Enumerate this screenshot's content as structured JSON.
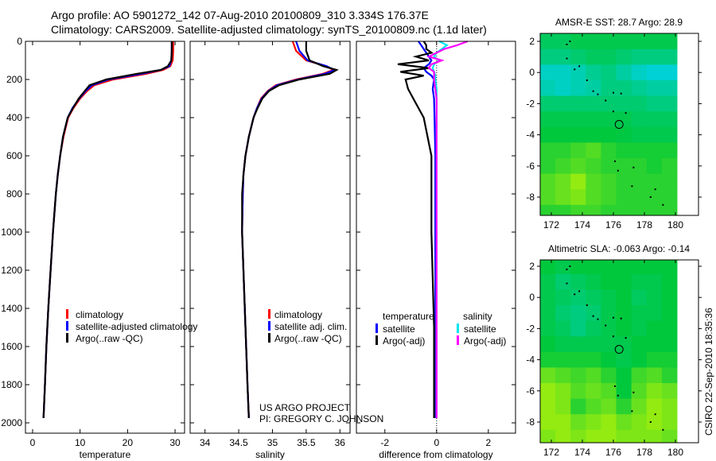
{
  "header": {
    "title_line1": "Argo profile: AO 5901272_142 07-Aug-2010 20100809_310 3.334S 176.37E",
    "title_line2": "Climatology: CARS2009. Satellite-adjusted climatology: synTS_20100809.nc (1.1d later)"
  },
  "credits": {
    "line1": "US ARGO PROJECT",
    "line2": "PI: GREGORY C. JOHNSON",
    "stamp": "CSIRO 22-Sep-2010 18:35:36"
  },
  "colors": {
    "clim": "#ff0000",
    "sat": "#0000ff",
    "argo": "#000000",
    "sal_sat": "#00e5ee",
    "sal_argo": "#ff00ff"
  },
  "chart_data": [
    {
      "type": "line",
      "name": "temperature",
      "xlabel": "temperature",
      "xlim": [
        -1.5,
        32
      ],
      "ylim": [
        2050,
        0
      ],
      "xticks": [
        0,
        10,
        20,
        30
      ],
      "yticks": [
        0,
        200,
        400,
        600,
        800,
        1000,
        1200,
        1400,
        1600,
        1800,
        2000
      ],
      "depth": [
        0,
        50,
        100,
        130,
        150,
        170,
        200,
        230,
        260,
        300,
        350,
        400,
        500,
        600,
        700,
        800,
        1000,
        1200,
        1400,
        1600,
        1800,
        1975
      ],
      "series": [
        {
          "name": "climatology",
          "color": "#ff0000",
          "values": [
            29.6,
            29.6,
            29.5,
            29,
            27.5,
            24,
            17,
            13,
            11.5,
            10,
            8.6,
            7.5,
            6.5,
            5.8,
            5.3,
            4.9,
            4.3,
            3.8,
            3.3,
            2.9,
            2.6,
            2.3
          ]
        },
        {
          "name": "satellite-adjusted climatology",
          "color": "#0000ff",
          "values": [
            29.3,
            29.3,
            29.2,
            28.8,
            27,
            23,
            16,
            12.5,
            11.2,
            9.8,
            8.4,
            7.4,
            6.4,
            5.8,
            5.3,
            4.9,
            4.3,
            3.8,
            3.3,
            2.9,
            2.6,
            2.3
          ]
        },
        {
          "name": "Argo(..raw -QC)",
          "color": "#000000",
          "values": [
            29.3,
            29.3,
            29.2,
            28.5,
            27,
            22,
            15.5,
            12,
            11,
            9.7,
            8.5,
            7.4,
            6.4,
            5.8,
            5.3,
            4.9,
            4.3,
            3.8,
            3.3,
            2.9,
            2.6,
            2.3
          ]
        }
      ]
    },
    {
      "type": "line",
      "name": "salinity",
      "xlabel": "salinity",
      "xlim": [
        33.78,
        36.15
      ],
      "ylim": [
        2050,
        0
      ],
      "xticks": [
        34,
        34.5,
        35,
        35.5,
        36
      ],
      "depth": [
        0,
        50,
        100,
        130,
        150,
        170,
        200,
        230,
        260,
        300,
        350,
        400,
        500,
        600,
        700,
        800,
        1000,
        1200,
        1400,
        1600,
        1800,
        1975
      ],
      "series": [
        {
          "name": "climatology",
          "color": "#ff0000",
          "values": [
            35.3,
            35.35,
            35.5,
            35.8,
            35.9,
            35.75,
            35.35,
            35.05,
            34.93,
            34.83,
            34.77,
            34.72,
            34.65,
            34.6,
            34.57,
            34.56,
            34.55,
            34.57,
            34.59,
            34.61,
            34.63,
            34.65
          ]
        },
        {
          "name": "satellite adj. clim.",
          "color": "#0000ff",
          "values": [
            35.35,
            35.4,
            35.52,
            35.8,
            35.92,
            35.78,
            35.38,
            35.07,
            34.94,
            34.84,
            34.77,
            34.72,
            34.65,
            34.6,
            34.57,
            34.56,
            34.55,
            34.57,
            34.59,
            34.61,
            34.63,
            34.65
          ]
        },
        {
          "name": "Argo(..raw -QC)",
          "color": "#000000",
          "values": [
            35.5,
            35.5,
            35.55,
            35.75,
            35.95,
            35.85,
            35.4,
            35.1,
            34.95,
            34.85,
            34.78,
            34.72,
            34.65,
            34.6,
            34.57,
            34.55,
            34.55,
            34.57,
            34.59,
            34.61,
            34.63,
            34.65
          ]
        }
      ]
    },
    {
      "type": "line",
      "name": "difference",
      "xlabel": "difference from climatology",
      "xlim": [
        -3.1,
        3.05
      ],
      "ylim": [
        2050,
        0
      ],
      "xticks": [
        -2,
        0,
        2
      ],
      "legend_headers": [
        "temperature",
        "salinity"
      ],
      "depth": [
        0,
        20,
        40,
        60,
        80,
        100,
        120,
        140,
        160,
        180,
        200,
        250,
        300,
        400,
        600,
        1000,
        1500,
        1975
      ],
      "series": [
        {
          "name": "satellite",
          "group": "temperature",
          "color": "#0000ff",
          "values": [
            -0.7,
            -0.6,
            -0.5,
            -0.4,
            -0.3,
            -0.2,
            -0.3,
            -0.5,
            -0.4,
            -0.2,
            -0.1,
            -0.15,
            -0.1,
            -0.08,
            -0.05,
            -0.05,
            -0.05,
            -0.05
          ]
        },
        {
          "name": "Argo(-adj)",
          "group": "temperature",
          "color": "#000000",
          "values": [
            -0.5,
            -0.4,
            -0.4,
            -0.2,
            -0.8,
            -0.3,
            -1.5,
            -0.3,
            -1.4,
            -0.5,
            -1.2,
            -1.1,
            -0.9,
            -0.5,
            -0.2,
            -0.2,
            -0.1,
            -0.1
          ]
        },
        {
          "name": "satellite",
          "group": "salinity",
          "color": "#00e5ee",
          "values": [
            0.1,
            0.4,
            0.2,
            0,
            -0.1,
            0.1,
            -0.1,
            -0.15,
            -0.1,
            -0.05,
            -0.05,
            0,
            0,
            0,
            0,
            0,
            0,
            0
          ]
        },
        {
          "name": "Argo(-adj)",
          "group": "salinity",
          "color": "#ff00ff",
          "values": [
            1.2,
            0.8,
            0.3,
            0,
            -0.3,
            0.2,
            -0.2,
            -0.3,
            -0.1,
            -0.1,
            -0.1,
            -0.05,
            0,
            0,
            0,
            0,
            0,
            0
          ]
        }
      ]
    },
    {
      "type": "heatmap",
      "name": "sst-map",
      "title": "AMSR-E SST: 28.7 Argo: 28.9",
      "xticks": [
        172,
        174,
        176,
        178,
        180
      ],
      "yticks": [
        2,
        0,
        -2,
        -4,
        -6,
        -8
      ],
      "lon0": 171.3,
      "lat_rows": [
        2,
        1,
        0,
        -1,
        -2,
        -3,
        -4,
        -5,
        -6,
        -7,
        -8,
        -9
      ],
      "grid": [
        [
          0.4,
          0.4,
          0.45,
          0.45,
          0.45,
          0.45,
          0.45,
          0.45,
          0.45
        ],
        [
          0.3,
          0.3,
          0.35,
          0.4,
          0.4,
          0.35,
          0.3,
          0.3,
          0.3
        ],
        [
          0.1,
          0.1,
          0.15,
          0.25,
          0.3,
          0.2,
          0.1,
          0.05,
          0.05
        ],
        [
          0.15,
          0.1,
          0.15,
          0.2,
          0.3,
          0.3,
          0.25,
          0.2,
          0.2
        ],
        [
          0.35,
          0.35,
          0.35,
          0.35,
          0.35,
          0.35,
          0.35,
          0.3,
          0.3
        ],
        [
          0.45,
          0.45,
          0.45,
          0.45,
          0.45,
          0.45,
          0.4,
          0.4,
          0.4
        ],
        [
          0.5,
          0.5,
          0.5,
          0.5,
          0.5,
          0.48,
          0.45,
          0.45,
          0.45
        ],
        [
          0.6,
          0.6,
          0.65,
          0.7,
          0.6,
          0.55,
          0.55,
          0.55,
          0.55
        ],
        [
          0.6,
          0.65,
          0.7,
          0.65,
          0.6,
          0.6,
          0.6,
          0.55,
          0.6
        ],
        [
          0.7,
          0.75,
          0.85,
          0.7,
          0.65,
          0.6,
          0.6,
          0.6,
          0.6
        ],
        [
          0.7,
          0.75,
          0.8,
          0.7,
          0.65,
          0.6,
          0.6,
          0.6,
          0.6
        ],
        [
          0.6,
          0.6,
          0.65,
          0.65,
          0.6,
          0.6,
          0.6,
          0.6,
          0.6
        ]
      ]
    },
    {
      "type": "heatmap",
      "name": "sla-map",
      "title": "Altimetric SLA: -0.063 Argo: -0.14",
      "xticks": [
        172,
        174,
        176,
        178,
        180
      ],
      "yticks": [
        2,
        0,
        -2,
        -4,
        -6,
        -8
      ],
      "lon0": 171.3,
      "lat_rows": [
        2,
        1,
        0,
        -1,
        -2,
        -3,
        -4,
        -5,
        -6,
        -7,
        -8,
        -9
      ],
      "grid": [
        [
          0.5,
          0.45,
          0.5,
          0.5,
          0.5,
          0.5,
          0.5,
          0.5,
          0.5
        ],
        [
          0.45,
          0.35,
          0.4,
          0.45,
          0.5,
          0.5,
          0.45,
          0.45,
          0.5
        ],
        [
          0.45,
          0.4,
          0.35,
          0.4,
          0.45,
          0.5,
          0.4,
          0.45,
          0.5
        ],
        [
          0.45,
          0.35,
          0.3,
          0.35,
          0.45,
          0.5,
          0.45,
          0.45,
          0.5
        ],
        [
          0.45,
          0.4,
          0.3,
          0.4,
          0.45,
          0.5,
          0.45,
          0.5,
          0.5
        ],
        [
          0.5,
          0.45,
          0.45,
          0.45,
          0.45,
          0.45,
          0.5,
          0.5,
          0.5
        ],
        [
          0.55,
          0.55,
          0.55,
          0.55,
          0.5,
          0.45,
          0.5,
          0.55,
          0.55
        ],
        [
          0.75,
          0.7,
          0.65,
          0.7,
          0.6,
          0.5,
          0.65,
          0.7,
          0.6
        ],
        [
          0.85,
          0.8,
          0.7,
          0.75,
          0.7,
          0.5,
          0.7,
          0.8,
          0.75
        ],
        [
          0.85,
          0.8,
          0.6,
          0.7,
          0.75,
          0.6,
          0.75,
          0.85,
          0.8
        ],
        [
          0.85,
          0.85,
          0.75,
          0.8,
          0.85,
          0.75,
          0.8,
          0.85,
          0.8
        ],
        [
          0.8,
          0.85,
          0.8,
          0.85,
          0.85,
          0.8,
          0.8,
          0.8,
          0.75
        ]
      ]
    }
  ],
  "map_common": {
    "float_position": [
      176.37,
      -3.334
    ],
    "islands": [
      [
        173.0,
        1.8
      ],
      [
        173.2,
        2.0
      ],
      [
        173.0,
        0.9
      ],
      [
        173.5,
        0.2
      ],
      [
        173.8,
        0.4
      ],
      [
        174.3,
        -0.5
      ],
      [
        174.7,
        -1.2
      ],
      [
        175.0,
        -1.4
      ],
      [
        175.5,
        -1.8
      ],
      [
        176.0,
        -1.3
      ],
      [
        176.5,
        -1.35
      ],
      [
        176.0,
        -2.5
      ],
      [
        176.8,
        -2.6
      ],
      [
        176.1,
        -5.7
      ],
      [
        176.3,
        -6.3
      ],
      [
        177.3,
        -6.1
      ],
      [
        177.2,
        -7.3
      ],
      [
        178.7,
        -7.5
      ],
      [
        178.4,
        -8.0
      ],
      [
        179.2,
        -8.5
      ]
    ]
  }
}
